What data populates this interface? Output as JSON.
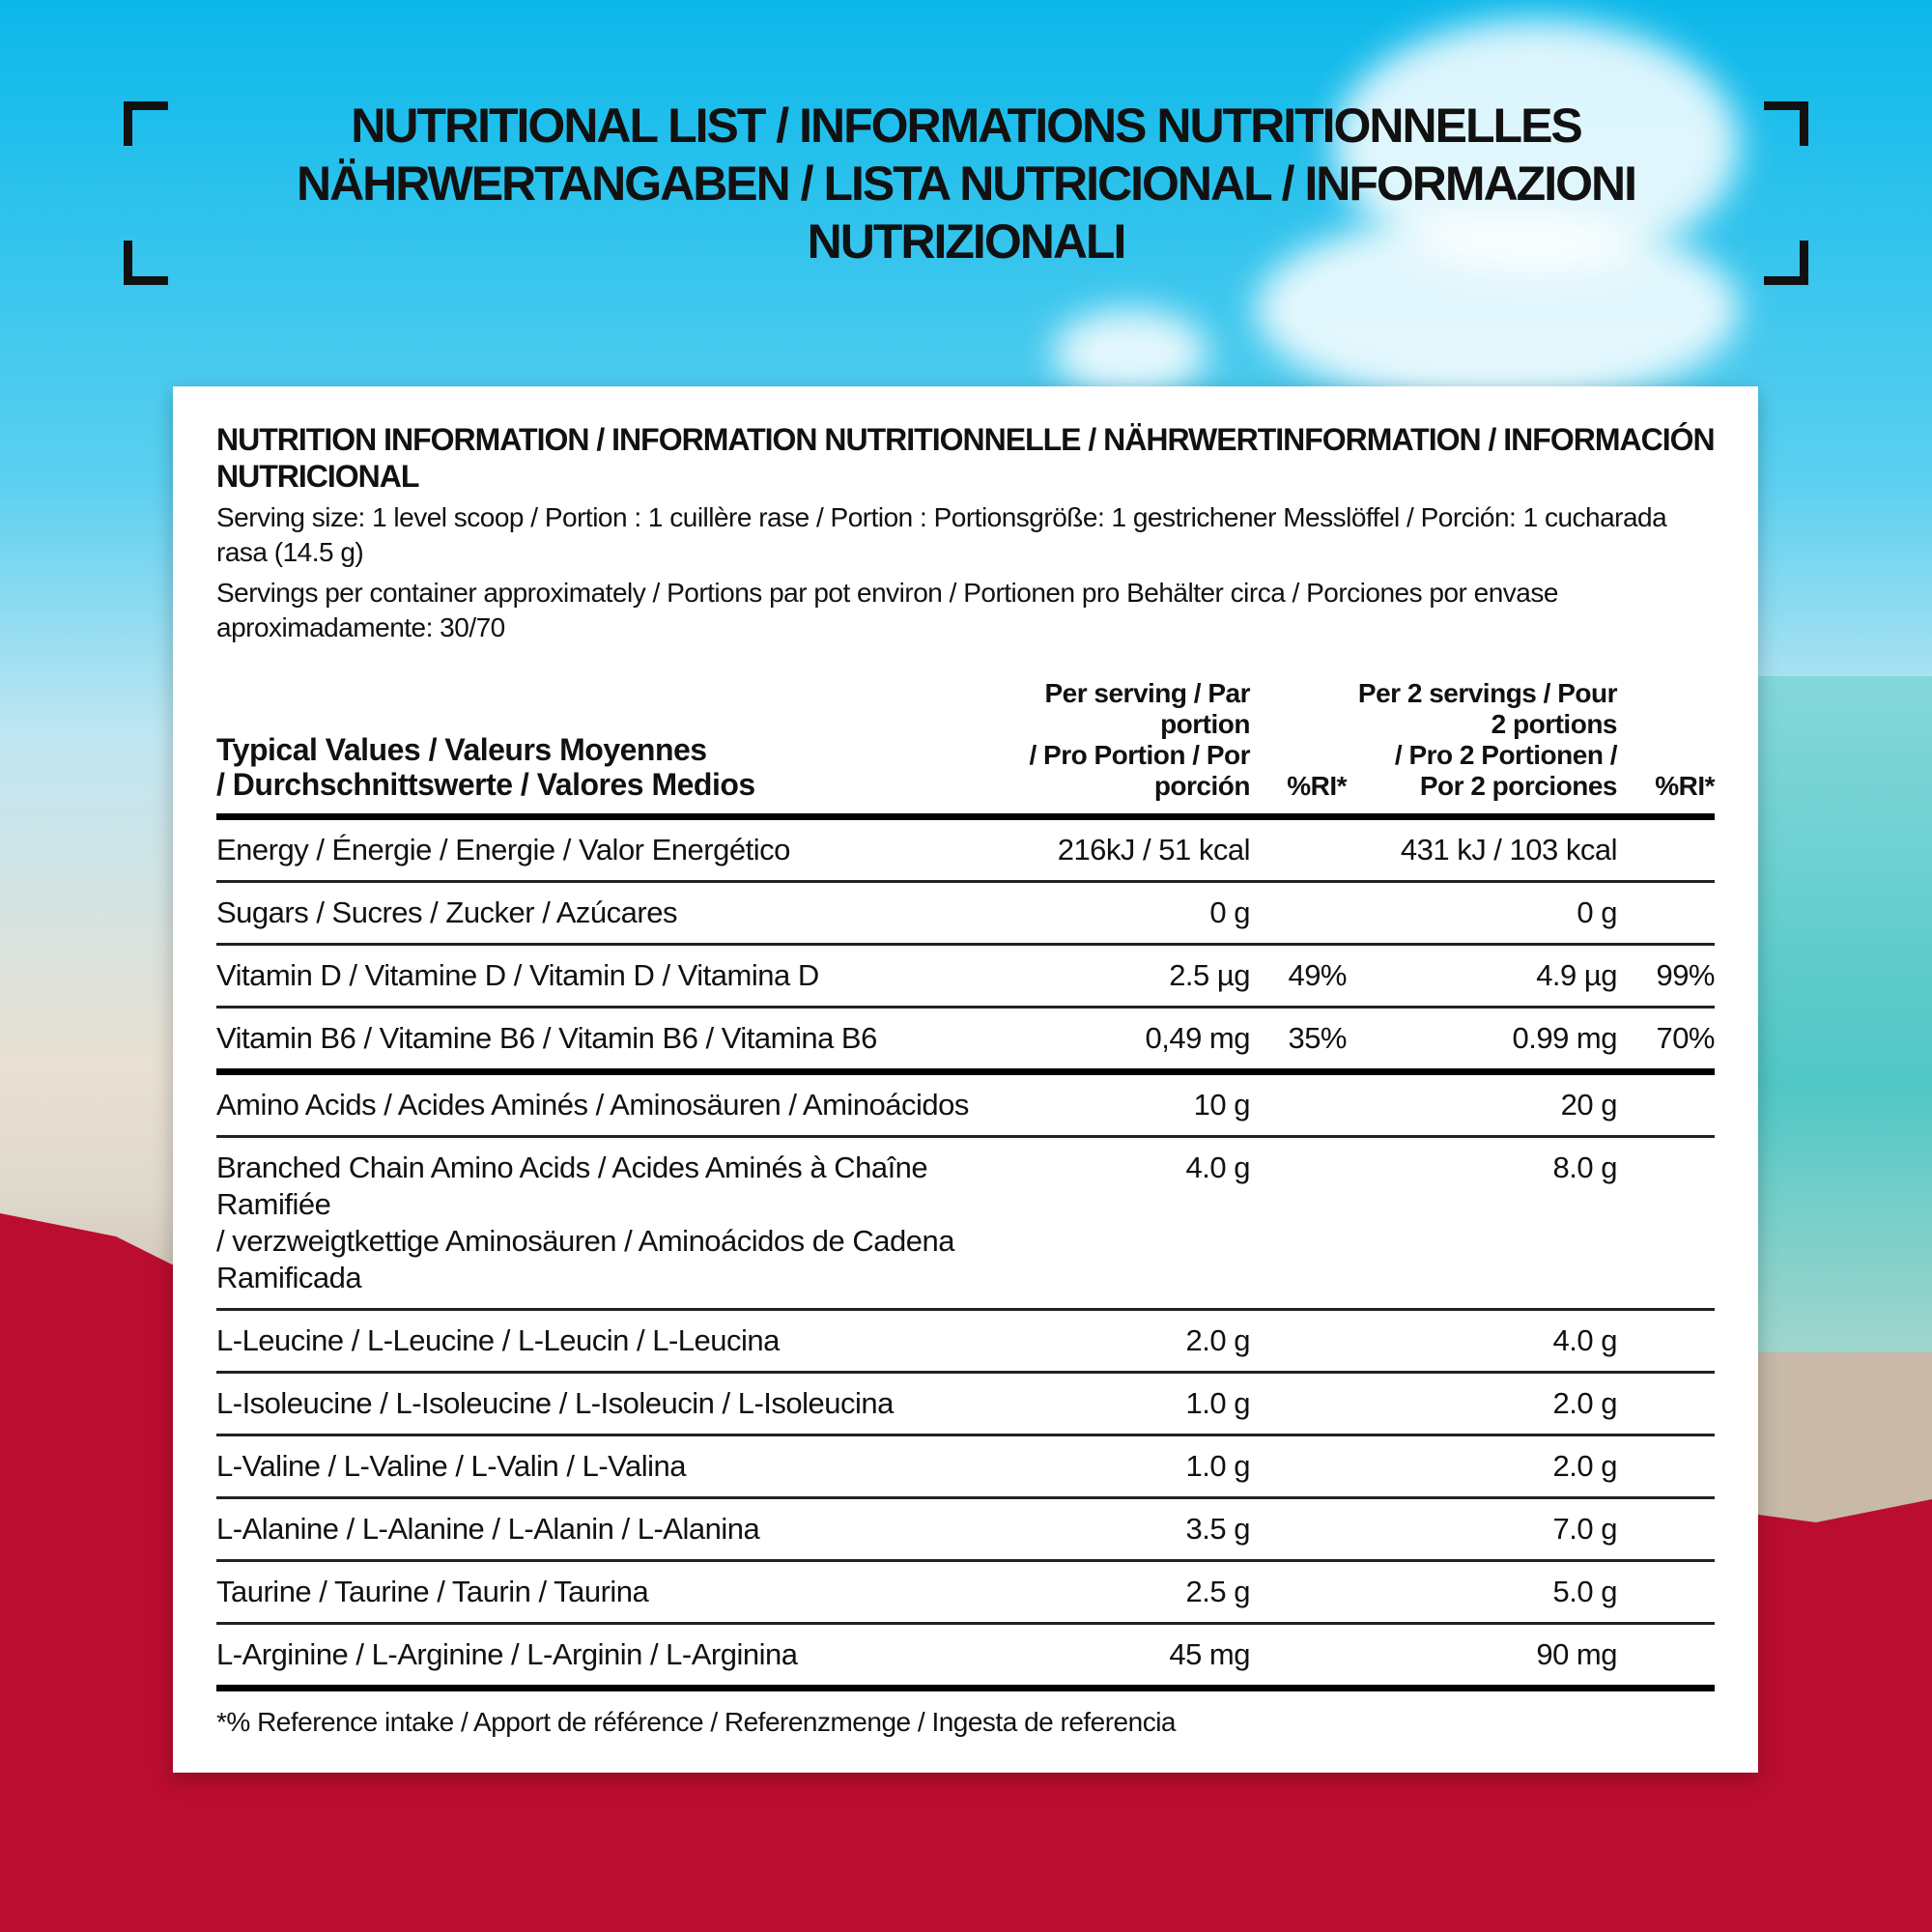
{
  "title": {
    "line1": "NUTRITIONAL LIST / INFORMATIONS NUTRITIONNELLES",
    "line2": "NÄHRWERTANGABEN / LISTA NUTRICIONAL / INFORMAZIONI NUTRIZIONALI"
  },
  "card": {
    "heading": "NUTRITION INFORMATION / INFORMATION NUTRITIONNELLE / NÄHRWERTINFORMATION / INFORMACIÓN NUTRICIONAL",
    "serving_size": "Serving size: 1 level scoop / Portion : 1 cuillère rase / Portion : Portionsgröße: 1 gestrichener Messlöffel / Porción: 1 cucharada rasa (14.5 g)",
    "servings_per_container": "Servings per container approximately / Portions par pot environ / Portionen pro Behälter circa / Porciones por envase aproximadamente: 30/70",
    "columns": {
      "label_1": "Typical Values / Valeurs Moyennes",
      "label_2": "/ Durchschnittswerte / Valores Medios",
      "per_serving_1": "Per serving / Par portion",
      "per_serving_2": "/ Pro Portion / Por porción",
      "ri": "%RI*",
      "per2_1": "Per 2 servings / Pour 2 portions",
      "per2_2": "/ Pro 2 Portionen / Por 2 porciones",
      "ri2": "%RI*"
    },
    "rows": [
      {
        "label": "Energy / Énergie / Energie / Valor Energético",
        "per": "216kJ / 51 kcal",
        "ri": "",
        "per2": "431 kJ / 103 kcal",
        "ri2": ""
      },
      {
        "label": "Sugars / Sucres / Zucker / Azúcares",
        "per": "0 g",
        "ri": "",
        "per2": "0 g",
        "ri2": ""
      },
      {
        "label": "Vitamin D / Vitamine D / Vitamin D / Vitamina D",
        "per": "2.5 µg",
        "ri": "49%",
        "per2": "4.9 µg",
        "ri2": "99%"
      },
      {
        "label": "Vitamin B6 / Vitamine B6 / Vitamin B6 / Vitamina B6",
        "per": "0,49 mg",
        "ri": "35%",
        "per2": "0.99 mg",
        "ri2": "70%"
      },
      {
        "label": "Amino Acids / Acides Aminés / Aminosäuren / Aminoácidos",
        "per": "10 g",
        "ri": "",
        "per2": "20 g",
        "ri2": ""
      },
      {
        "label": "Branched Chain Amino Acids / Acides Aminés à Chaîne Ramifiée",
        "label2": "/ verzweigtkettige Aminosäuren / Aminoácidos de Cadena Ramificada",
        "per": "4.0 g",
        "ri": "",
        "per2": "8.0 g",
        "ri2": ""
      },
      {
        "label": "L-Leucine / L-Leucine / L-Leucin / L-Leucina",
        "per": "2.0 g",
        "ri": "",
        "per2": "4.0 g",
        "ri2": ""
      },
      {
        "label": "L-Isoleucine / L-Isoleucine / L-Isoleucin / L-Isoleucina",
        "per": "1.0 g",
        "ri": "",
        "per2": "2.0 g",
        "ri2": ""
      },
      {
        "label": "L-Valine / L-Valine / L-Valin / L-Valina",
        "per": "1.0 g",
        "ri": "",
        "per2": "2.0 g",
        "ri2": ""
      },
      {
        "label": "L-Alanine / L-Alanine / L-Alanin / L-Alanina",
        "per": "3.5 g",
        "ri": "",
        "per2": "7.0 g",
        "ri2": ""
      },
      {
        "label": "Taurine / Taurine / Taurin / Taurina",
        "per": "2.5 g",
        "ri": "",
        "per2": "5.0 g",
        "ri2": ""
      },
      {
        "label": "L-Arginine / L-Arginine / L-Arginin / L-Arginina",
        "per": "45 mg",
        "ri": "",
        "per2": "90 mg",
        "ri2": ""
      }
    ],
    "footnote": "*% Reference intake / Apport de référence  / Referenzmenge / Ingesta de referencia"
  },
  "colors": {
    "background_red": "#bb0d2f",
    "sky": "#0bb8ea"
  }
}
